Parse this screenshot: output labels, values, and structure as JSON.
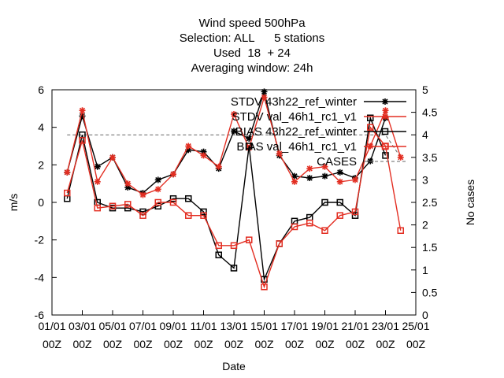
{
  "chart_data": {
    "type": "line",
    "title_lines": [
      "Wind speed 500hPa",
      "Selection: ALL      5 stations",
      "Used  18  + 24",
      "Averaging window: 24h"
    ],
    "xlabel": "Date",
    "ylabel": "m/s",
    "y2label": "No cases",
    "xlim": [
      1,
      25
    ],
    "ylim": [
      -6,
      6
    ],
    "y2lim": [
      0,
      5
    ],
    "x_ticks": [
      "01/01\n00Z",
      "03/01\n00Z",
      "05/01\n00Z",
      "07/01\n00Z",
      "09/01\n00Z",
      "11/01\n00Z",
      "13/01\n00Z",
      "15/01\n00Z",
      "17/01\n00Z",
      "19/01\n00Z",
      "21/01\n00Z",
      "23/01\n00Z",
      "25/01\n00Z"
    ],
    "y_ticks": [
      -6,
      -4,
      -2,
      0,
      2,
      4,
      6
    ],
    "y2_ticks": [
      0,
      0.5,
      1,
      1.5,
      2,
      2.5,
      3,
      3.5,
      4,
      4.5,
      5
    ],
    "legend_position": "top-right",
    "series": [
      {
        "name": "STDV 43h22_ref_winter",
        "color": "#000000",
        "marker": "star",
        "x": [
          2,
          3,
          4,
          5,
          6,
          7,
          8,
          9,
          10,
          11,
          12,
          13,
          14,
          15,
          16,
          17,
          18,
          19,
          20,
          21,
          22,
          23
        ],
        "values": [
          1.6,
          4.6,
          1.9,
          2.4,
          0.8,
          0.5,
          1.2,
          1.5,
          2.8,
          2.7,
          1.8,
          3.8,
          3.4,
          5.9,
          2.5,
          1.4,
          1.3,
          1.4,
          1.6,
          1.3,
          2.2,
          4.5
        ]
      },
      {
        "name": "STDV val_46h1_rc1_v1",
        "color": "#e32e22",
        "marker": "star",
        "x": [
          2,
          3,
          4,
          5,
          6,
          7,
          8,
          9,
          10,
          11,
          12,
          13,
          14,
          15,
          16,
          17,
          18,
          19,
          20,
          21,
          22,
          23,
          24
        ],
        "values": [
          1.6,
          4.9,
          1.1,
          2.4,
          1.0,
          0.4,
          0.7,
          1.5,
          3.0,
          2.5,
          1.9,
          4.7,
          2.9,
          5.6,
          2.6,
          1.1,
          1.8,
          1.9,
          1.1,
          1.2,
          3.0,
          4.9,
          2.4
        ]
      },
      {
        "name": "BIAS 43h22_ref_winter",
        "color": "#000000",
        "marker": "square",
        "x": [
          2,
          3,
          4,
          5,
          6,
          7,
          8,
          9,
          10,
          11,
          12,
          13,
          14,
          15,
          16,
          17,
          18,
          19,
          20,
          21,
          22,
          23
        ],
        "values": [
          0.2,
          3.6,
          0.0,
          -0.3,
          -0.3,
          -0.5,
          -0.2,
          0.2,
          0.2,
          -0.5,
          -2.8,
          -3.5,
          3.0,
          -4.1,
          -2.2,
          -1.0,
          -0.8,
          0.0,
          0.0,
          -0.7,
          4.5,
          2.5
        ]
      },
      {
        "name": "BIAS val_46h1_rc1_v1",
        "color": "#e32e22",
        "marker": "square",
        "x": [
          2,
          3,
          4,
          5,
          6,
          7,
          8,
          9,
          10,
          11,
          12,
          13,
          14,
          15,
          16,
          17,
          18,
          19,
          20,
          21,
          22,
          23,
          24
        ],
        "values": [
          0.5,
          3.3,
          -0.3,
          -0.2,
          -0.1,
          -0.7,
          0.0,
          0.0,
          -0.7,
          -0.7,
          -2.3,
          -2.3,
          -2.0,
          -4.5,
          -2.2,
          -1.3,
          -1.1,
          -1.5,
          -0.7,
          -0.5,
          4.0,
          3.0,
          -1.5
        ]
      }
    ],
    "cases": {
      "name": "CASES",
      "color": "#666666",
      "style": "dashed",
      "axis": "y2",
      "x": [
        2,
        3,
        4,
        5,
        6,
        7,
        8,
        9,
        10,
        11,
        12,
        13,
        14,
        15,
        16,
        17,
        18,
        19,
        20,
        21,
        22,
        23,
        24
      ],
      "values": [
        4,
        4,
        4,
        4,
        4,
        4,
        4,
        4,
        4,
        4,
        4,
        4,
        4,
        4,
        4,
        4,
        4,
        4,
        4,
        4,
        4,
        4,
        3.5
      ]
    }
  }
}
